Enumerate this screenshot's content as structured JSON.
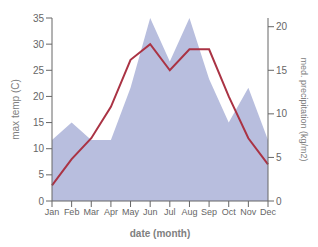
{
  "chart_data": {
    "type": "line",
    "categories": [
      "Jan",
      "Feb",
      "Mar",
      "Apr",
      "May",
      "Jun",
      "Jul",
      "Aug",
      "Sep",
      "Oct",
      "Nov",
      "Dec"
    ],
    "series": [
      {
        "type": "area",
        "axis": "y2",
        "color": "#b8bede",
        "values": [
          7,
          9,
          7,
          7,
          13,
          21,
          16,
          21,
          14,
          9,
          13,
          7
        ]
      },
      {
        "type": "line",
        "color": "#aa3344",
        "values": [
          3,
          8,
          12,
          18,
          27,
          30,
          25,
          29,
          29,
          20,
          12,
          7
        ]
      }
    ],
    "xlabel": "date (month)",
    "ylabel": "max temp (C)",
    "y2label": "med. precipitation (kg/m2)",
    "ylim": [
      0,
      35
    ],
    "yticks": [
      0,
      5,
      10,
      15,
      20,
      25,
      30,
      35
    ],
    "y2lim": [
      0,
      21
    ],
    "y2ticks": [
      0,
      5,
      10,
      15,
      20
    ],
    "grid": false
  }
}
